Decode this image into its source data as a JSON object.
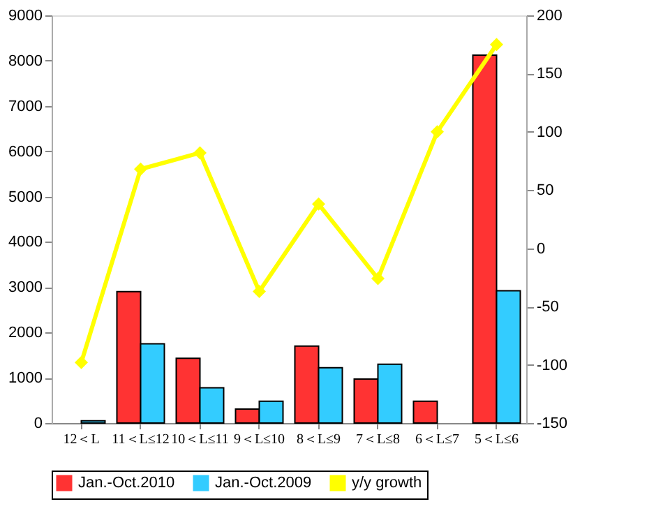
{
  "chart_data": {
    "type": "bar",
    "categories": [
      "12＜L",
      "11＜L≤12",
      "10＜L≤11",
      "9＜L≤10",
      "8＜L≤9",
      "7＜L≤8",
      "6＜L≤7",
      "5＜L≤6"
    ],
    "series": [
      {
        "name": "Jan.-Oct.2010",
        "color": "#ff3333",
        "values": [
          null,
          2900,
          1430,
          310,
          1700,
          970,
          480,
          8120
        ]
      },
      {
        "name": "Jan.-Oct.2009",
        "color": "#33ccff",
        "values": [
          50,
          1750,
          780,
          480,
          1220,
          1300,
          null,
          2920
        ]
      },
      {
        "name": "y/y growth",
        "color": "#ffff00",
        "type": "line",
        "axis": "y2",
        "marker": "diamond",
        "values": [
          -98,
          68,
          82,
          -37,
          38,
          -26,
          100,
          175
        ]
      }
    ],
    "ylim": [
      0,
      9000
    ],
    "yticks": [
      0,
      1000,
      2000,
      3000,
      4000,
      5000,
      6000,
      7000,
      8000,
      9000
    ],
    "y2lim": [
      -150,
      200
    ],
    "y2ticks": [
      -150,
      -100,
      -50,
      0,
      50,
      100,
      150,
      200
    ],
    "grid": false,
    "legend": "bottom"
  }
}
